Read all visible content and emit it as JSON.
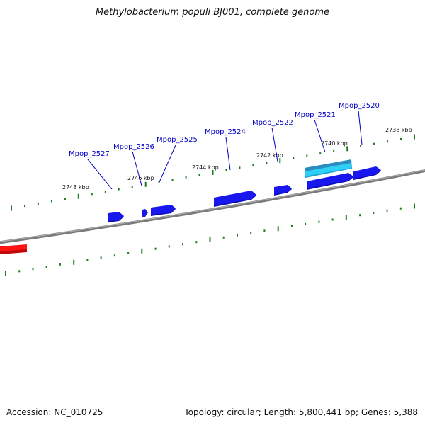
{
  "title": "Methylobacterium populi BJ001, complete genome",
  "footer": {
    "accession": "Accession: NC_010725",
    "summary": "Topology: circular; Length: 5,800,441 bp; Genes: 5,388"
  },
  "colors": {
    "backbone": "#7a7a7a",
    "ticks": "#1f7a1f",
    "gene_forward": "#1010e0",
    "gene_highlight": "#19b8e6",
    "gene_other": "#e81010",
    "label": "#0000c8",
    "scale_label": "#111111"
  },
  "scale_labels": [
    "2748 kbp",
    "2746 kbp",
    "2744 kbp",
    "2742 kbp",
    "2740 kbp",
    "2738 kbp"
  ],
  "gene_labels": [
    "Mpop_2527",
    "Mpop_2526",
    "Mpop_2525",
    "Mpop_2524",
    "Mpop_2522",
    "Mpop_2521",
    "Mpop_2520"
  ]
}
